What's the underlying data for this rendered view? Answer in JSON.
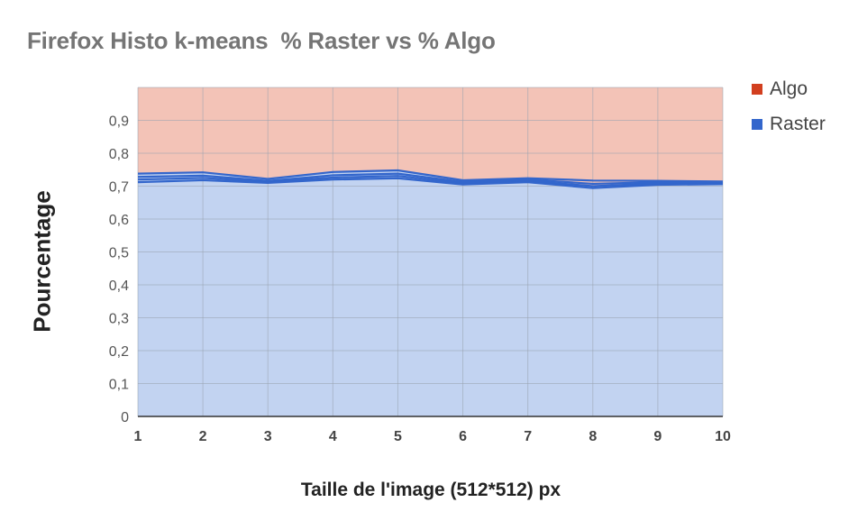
{
  "chart_data": {
    "type": "area",
    "title": "Firefox Histo k-means  % Raster vs % Algo",
    "xlabel": "Taille de l'image (512*512) px",
    "ylabel": "Pourcentage",
    "x": [
      1,
      2,
      3,
      4,
      5,
      6,
      7,
      8,
      9,
      10
    ],
    "xlim": [
      1,
      10
    ],
    "ylim": [
      0,
      1
    ],
    "yticks": [
      "0",
      "0,1",
      "0,2",
      "0,3",
      "0,4",
      "0,5",
      "0,6",
      "0,7",
      "0,8",
      "0,9"
    ],
    "ytick_values": [
      0,
      0.1,
      0.2,
      0.3,
      0.4,
      0.5,
      0.6,
      0.7,
      0.8,
      0.9
    ],
    "xticks": [
      "1",
      "2",
      "3",
      "4",
      "5",
      "6",
      "7",
      "8",
      "9",
      "10"
    ],
    "grid": true,
    "legend_position": "right",
    "series": [
      {
        "name": "Algo",
        "color": "#d23f1f",
        "fill": "#f3c3b7",
        "values": [
          0.26,
          0.26,
          0.28,
          0.26,
          0.25,
          0.29,
          0.28,
          0.3,
          0.29,
          0.29
        ]
      },
      {
        "name": "Raster",
        "color": "#3366cc",
        "fill": "#c2d3f1",
        "values": [
          0.74,
          0.74,
          0.72,
          0.74,
          0.75,
          0.71,
          0.72,
          0.7,
          0.71,
          0.71
        ]
      }
    ],
    "raster_lines": [
      [
        0.738,
        0.742,
        0.722,
        0.743,
        0.748,
        0.718,
        0.724,
        0.717,
        0.716,
        0.714
      ],
      [
        0.728,
        0.732,
        0.716,
        0.733,
        0.738,
        0.713,
        0.72,
        0.707,
        0.712,
        0.71
      ],
      [
        0.72,
        0.725,
        0.713,
        0.726,
        0.731,
        0.709,
        0.716,
        0.7,
        0.708,
        0.708
      ],
      [
        0.712,
        0.718,
        0.71,
        0.72,
        0.724,
        0.705,
        0.712,
        0.694,
        0.704,
        0.706
      ]
    ]
  }
}
